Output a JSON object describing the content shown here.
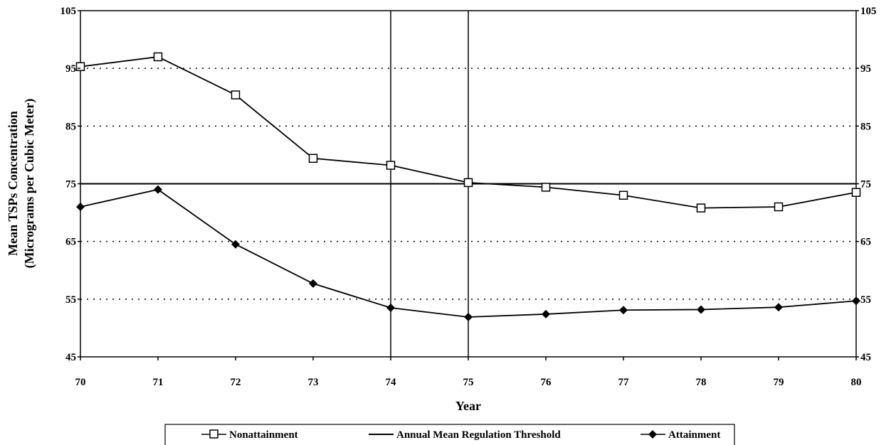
{
  "chart_data": {
    "type": "line",
    "ylabel": "Mean TSPs Concentration",
    "ylabel2": "(Micrograms per Cubic Meter)",
    "xlabel": "Year",
    "x": [
      70,
      71,
      72,
      73,
      74,
      75,
      76,
      77,
      78,
      79,
      80
    ],
    "x_tick_labels": [
      "70",
      "71",
      "72",
      "73",
      "74",
      "75",
      "76",
      "77",
      "78",
      "79",
      "80"
    ],
    "ylim": [
      45,
      105
    ],
    "y_ticks": [
      45,
      55,
      65,
      75,
      85,
      95,
      105
    ],
    "y_tick_labels": [
      "45",
      "55",
      "65",
      "75",
      "85",
      "95",
      "105"
    ],
    "grid": "dotted horizontal",
    "legend_position": "bottom",
    "series": [
      {
        "name": "Nonattainment",
        "marker": "open-square",
        "values": [
          95.3,
          97.0,
          90.4,
          79.4,
          78.2,
          75.2,
          74.4,
          73.0,
          70.8,
          71.0,
          73.5
        ]
      },
      {
        "name": "Attainment",
        "marker": "filled-diamond",
        "values": [
          71.0,
          74.0,
          64.5,
          57.7,
          53.5,
          51.9,
          52.4,
          53.1,
          53.2,
          53.6,
          54.7
        ]
      }
    ],
    "threshold": {
      "name": "Annual Mean Regulation Threshold",
      "value": 75
    },
    "vertical_lines_x": [
      74,
      75
    ],
    "legend": [
      {
        "label": "Nonattainment",
        "marker": "open-square"
      },
      {
        "label": "Annual Mean Regulation Threshold",
        "marker": "line"
      },
      {
        "label": "Attainment",
        "marker": "filled-diamond"
      }
    ]
  }
}
